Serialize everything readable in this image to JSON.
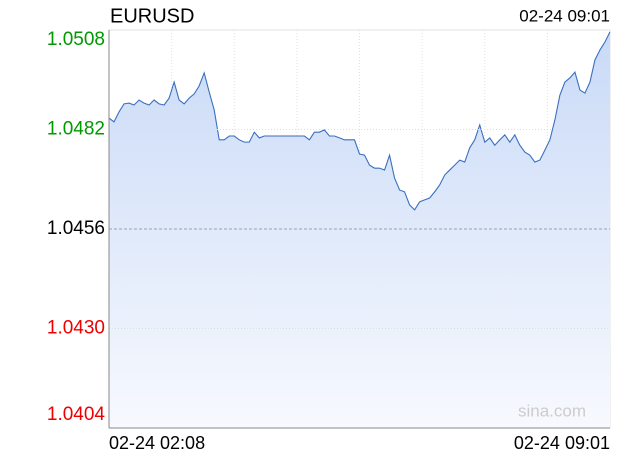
{
  "chart_data": {
    "type": "line",
    "title": "EURUSD",
    "timestamp": "02-24 09:01",
    "watermark": "sina.com",
    "categories": [
      "02-24 02:08",
      null,
      null,
      null,
      null,
      null,
      null,
      null,
      null,
      null,
      null,
      null,
      null,
      null,
      null,
      null,
      null,
      null,
      null,
      null,
      null,
      null,
      null,
      null,
      null,
      null,
      null,
      null,
      null,
      null,
      null,
      null,
      null,
      null,
      null,
      null,
      null,
      null,
      null,
      null,
      null,
      null,
      null,
      null,
      null,
      null,
      null,
      null,
      null,
      null,
      null,
      null,
      null,
      null,
      null,
      null,
      null,
      null,
      null,
      null,
      null,
      null,
      null,
      null,
      null,
      null,
      null,
      null,
      null,
      null,
      null,
      null,
      null,
      null,
      null,
      null,
      null,
      null,
      null,
      null,
      null,
      null,
      null,
      null,
      null,
      null,
      null,
      null,
      null,
      null,
      null,
      null,
      null,
      null,
      null,
      null,
      null,
      null,
      null,
      null,
      "02-24 09:01"
    ],
    "series": [
      {
        "name": "EURUSD",
        "color": "#3a6fbf",
        "values": [
          1.0485,
          1.0484,
          1.04866,
          1.04887,
          1.04889,
          1.04884,
          1.04897,
          1.04889,
          1.04884,
          1.04897,
          1.04887,
          1.04884,
          1.04902,
          1.04944,
          1.04897,
          1.04887,
          1.04902,
          1.04913,
          1.04934,
          1.04968,
          1.04918,
          1.04871,
          1.04793,
          1.04793,
          1.04803,
          1.04803,
          1.04793,
          1.04787,
          1.04787,
          1.04813,
          1.04798,
          1.04803,
          1.04803,
          1.04803,
          1.04803,
          1.04803,
          1.04803,
          1.04803,
          1.04803,
          1.04803,
          1.04793,
          1.04813,
          1.04813,
          1.04819,
          1.04803,
          1.04803,
          1.04798,
          1.04793,
          1.04793,
          1.04793,
          1.04756,
          1.04753,
          1.04727,
          1.04719,
          1.04719,
          1.04714,
          1.04753,
          1.04693,
          1.04662,
          1.04657,
          1.04623,
          1.0461,
          1.04631,
          1.04636,
          1.04641,
          1.04657,
          1.04675,
          1.04701,
          1.04714,
          1.04727,
          1.0474,
          1.04735,
          1.04772,
          1.04793,
          1.04832,
          1.04787,
          1.04798,
          1.04779,
          1.04793,
          1.04806,
          1.04787,
          1.04806,
          1.04779,
          1.04761,
          1.04753,
          1.04735,
          1.0474,
          1.04766,
          1.04793,
          1.04845,
          1.0491,
          1.04944,
          1.04955,
          1.0497,
          1.04923,
          1.04915,
          1.04944,
          1.05002,
          1.05028,
          1.05049,
          1.05075
        ]
      }
    ],
    "reference": 1.0456,
    "ylim": [
      1.0404,
      1.0508
    ],
    "yticks": [
      1.0508,
      1.0482,
      1.0456,
      {
        "value": 1.043,
        "label": "1.0430"
      },
      1.0404
    ],
    "up_color": "#009900",
    "down_color": "#ee0000",
    "grid": true
  }
}
